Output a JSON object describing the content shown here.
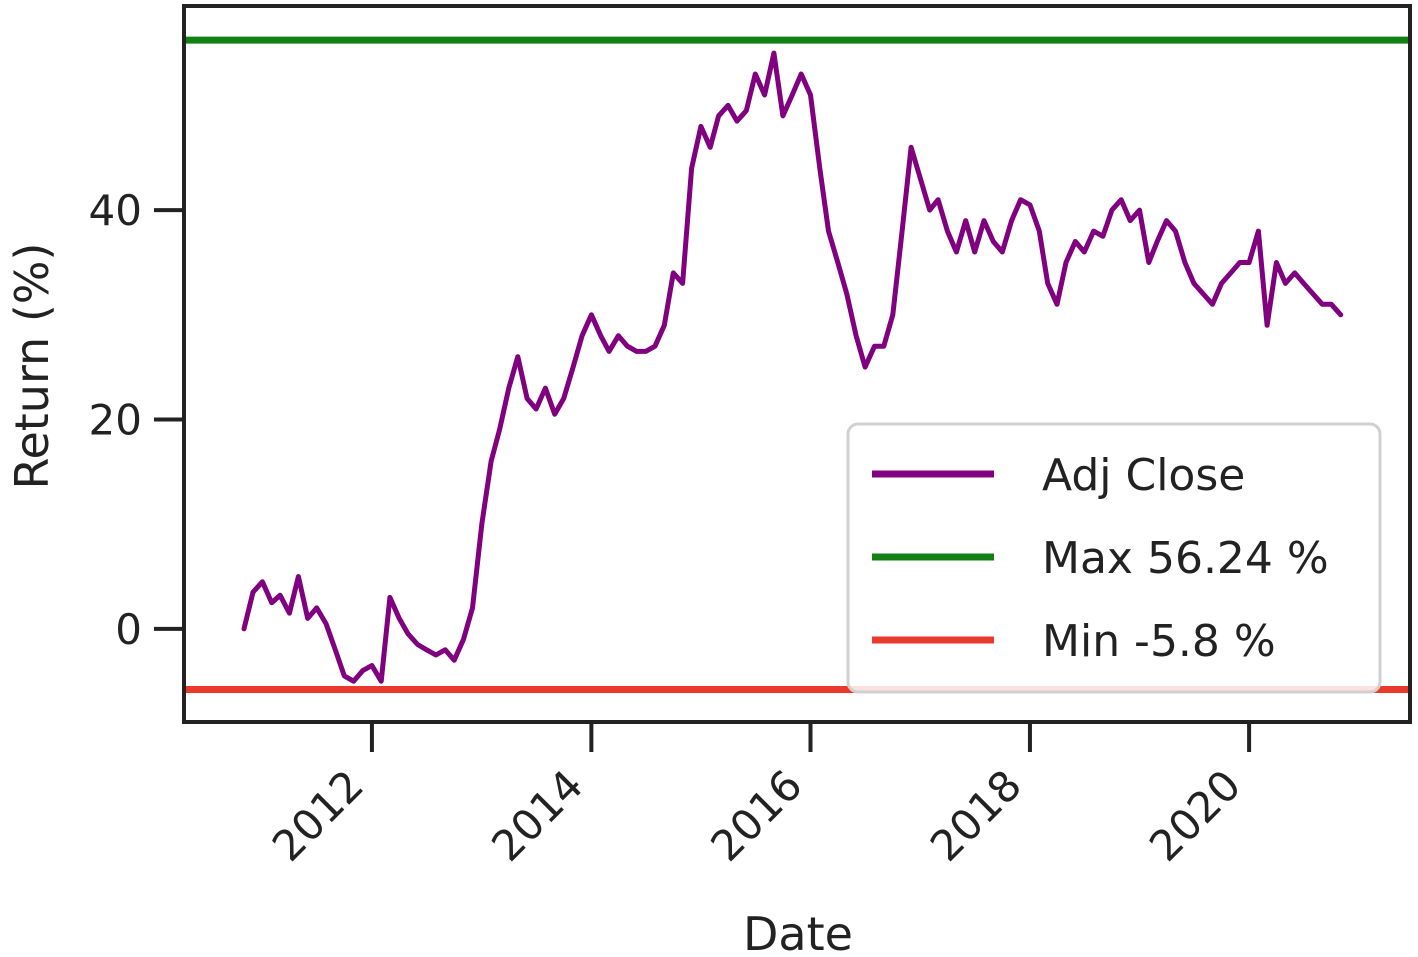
{
  "chart_data": {
    "type": "line",
    "title": "",
    "xlabel": "Date",
    "ylabel": "Return (%)",
    "xlim": [
      "2010-04-15",
      "2021-06-20"
    ],
    "ylim": [
      -8.9,
      59.5
    ],
    "x_ticks": [
      "2012",
      "2014",
      "2016",
      "2018",
      "2020"
    ],
    "y_ticks": [
      0,
      20,
      40
    ],
    "grid": false,
    "legend": "lower-right",
    "series": [
      {
        "name": "Adj Close",
        "color": "#800080",
        "x": [
          "2010-11-01",
          "2010-12-01",
          "2011-01-01",
          "2011-02-01",
          "2011-03-01",
          "2011-04-01",
          "2011-05-01",
          "2011-06-01",
          "2011-07-01",
          "2011-08-01",
          "2011-09-01",
          "2011-10-01",
          "2011-11-01",
          "2011-12-01",
          "2012-01-01",
          "2012-02-01",
          "2012-03-01",
          "2012-04-01",
          "2012-05-01",
          "2012-06-01",
          "2012-07-01",
          "2012-08-01",
          "2012-09-01",
          "2012-10-01",
          "2012-11-01",
          "2012-12-01",
          "2013-01-01",
          "2013-02-01",
          "2013-03-01",
          "2013-04-01",
          "2013-05-01",
          "2013-06-01",
          "2013-07-01",
          "2013-08-01",
          "2013-09-01",
          "2013-10-01",
          "2013-11-01",
          "2013-12-01",
          "2014-01-01",
          "2014-02-01",
          "2014-03-01",
          "2014-04-01",
          "2014-05-01",
          "2014-06-01",
          "2014-07-01",
          "2014-08-01",
          "2014-09-01",
          "2014-10-01",
          "2014-11-01",
          "2014-12-01",
          "2015-01-01",
          "2015-02-01",
          "2015-03-01",
          "2015-04-01",
          "2015-05-01",
          "2015-06-01",
          "2015-07-01",
          "2015-08-01",
          "2015-09-01",
          "2015-10-01",
          "2015-11-01",
          "2015-12-01",
          "2016-01-01",
          "2016-02-01",
          "2016-03-01",
          "2016-04-01",
          "2016-05-01",
          "2016-06-01",
          "2016-07-01",
          "2016-08-01",
          "2016-09-01",
          "2016-10-01",
          "2016-11-01",
          "2016-12-01",
          "2017-01-01",
          "2017-02-01",
          "2017-03-01",
          "2017-04-01",
          "2017-05-01",
          "2017-06-01",
          "2017-07-01",
          "2017-08-01",
          "2017-09-01",
          "2017-10-01",
          "2017-11-01",
          "2017-12-01",
          "2018-01-01",
          "2018-02-01",
          "2018-03-01",
          "2018-04-01",
          "2018-05-01",
          "2018-06-01",
          "2018-07-01",
          "2018-08-01",
          "2018-09-01",
          "2018-10-01",
          "2018-11-01",
          "2018-12-01",
          "2019-01-01",
          "2019-02-01",
          "2019-03-01",
          "2019-04-01",
          "2019-05-01",
          "2019-06-01",
          "2019-07-01",
          "2019-08-01",
          "2019-09-01",
          "2019-10-01",
          "2019-11-01",
          "2019-12-01",
          "2020-01-01",
          "2020-02-01",
          "2020-03-01",
          "2020-04-01",
          "2020-05-01",
          "2020-06-01",
          "2020-07-01",
          "2020-08-01",
          "2020-09-01",
          "2020-10-01",
          "2020-11-01"
        ],
        "y": [
          0.0,
          3.5,
          4.5,
          2.5,
          3.2,
          1.5,
          5.0,
          1.0,
          2.0,
          0.5,
          -2.0,
          -4.5,
          -5.0,
          -4.0,
          -3.5,
          -5.0,
          3.0,
          1.0,
          -0.5,
          -1.5,
          -2.0,
          -2.5,
          -2.0,
          -3.0,
          -1.0,
          2.0,
          10.0,
          16.0,
          19.0,
          23.0,
          26.0,
          22.0,
          21.0,
          23.0,
          20.5,
          22.0,
          25.0,
          28.0,
          30.0,
          28.0,
          26.5,
          28.0,
          27.0,
          26.5,
          26.5,
          27.0,
          29.0,
          34.0,
          33.0,
          44.0,
          48.0,
          46.0,
          49.0,
          50.0,
          48.5,
          49.5,
          53.0,
          51.0,
          55.0,
          49.0,
          51.0,
          53.0,
          51.0,
          44.0,
          38.0,
          35.0,
          32.0,
          28.0,
          25.0,
          27.0,
          27.0,
          30.0,
          38.0,
          46.0,
          43.0,
          40.0,
          41.0,
          38.0,
          36.0,
          39.0,
          36.0,
          39.0,
          37.0,
          36.0,
          39.0,
          41.0,
          40.5,
          38.0,
          33.0,
          31.0,
          35.0,
          37.0,
          36.0,
          38.0,
          37.5,
          40.0,
          41.0,
          39.0,
          40.0,
          35.0,
          37.0,
          39.0,
          38.0,
          35.0,
          33.0,
          32.0,
          31.0,
          33.0,
          34.0,
          35.0,
          35.0,
          38.0,
          29.0,
          35.0,
          33.0,
          34.0,
          33.0,
          32.0,
          31.0,
          31.0,
          30.0
        ]
      },
      {
        "name": "Max 56.24 %",
        "color": "#138013",
        "value": 56.24
      },
      {
        "name": "Min -5.8 %",
        "color": "#e8392b",
        "value": -5.8
      }
    ]
  }
}
